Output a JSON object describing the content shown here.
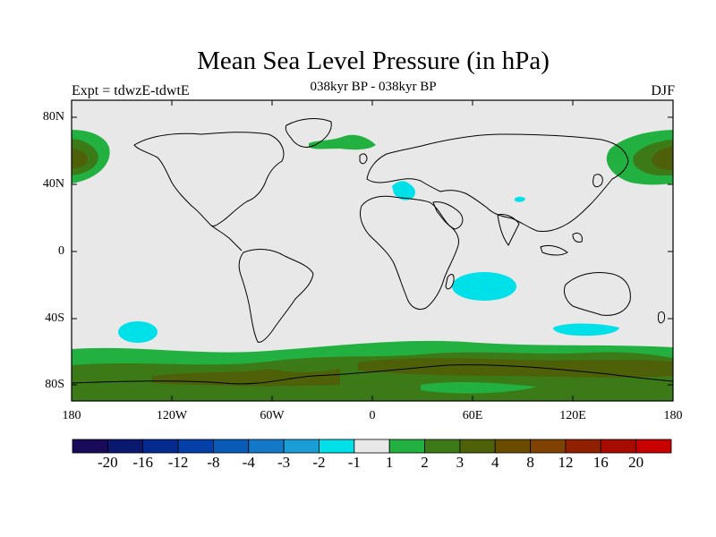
{
  "header": {
    "title": "Mean Sea Level Pressure (in hPa)",
    "subtitle": "038kyr BP - 038kyr BP",
    "left_label": "Expt = tdwzE-tdwtE",
    "right_label": "DJF"
  },
  "map": {
    "projection": "cylindrical equidistant",
    "ocean_color": "#e8e8e8",
    "lat_labels": [
      "80N",
      "40N",
      "0",
      "40S",
      "80S"
    ],
    "lon_labels": [
      "180",
      "120W",
      "60W",
      "0",
      "60E",
      "120E",
      "180"
    ]
  },
  "colorbar": {
    "colors": [
      "#1a0a5a",
      "#0a1870",
      "#052a90",
      "#0540a8",
      "#0a5ab8",
      "#1478c8",
      "#1a9ed6",
      "#00e0e8",
      "#e8e8e8",
      "#22b040",
      "#3c7a18",
      "#4e6008",
      "#6a4c00",
      "#804200",
      "#902000",
      "#a80c00",
      "#c80000"
    ],
    "labels": [
      "-20",
      "-16",
      "-12",
      "-8",
      "-4",
      "-3",
      "-2",
      "-1",
      "1",
      "2",
      "3",
      "4",
      "8",
      "12",
      "16",
      "20"
    ]
  },
  "legend_levels": {
    "cyan": "#00e0e8",
    "light_green": "#22b040",
    "mid_green": "#3c7a18",
    "dark_olive": "#4e6008"
  }
}
